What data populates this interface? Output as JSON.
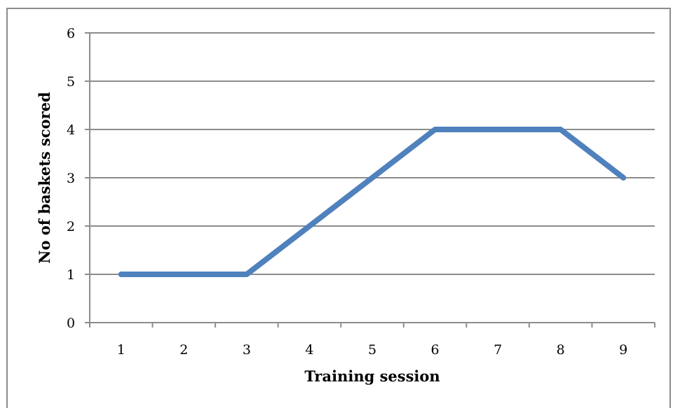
{
  "chart_data": {
    "type": "line",
    "title": "",
    "xlabel": "Training session",
    "ylabel": "No of baskets scored",
    "categories": [
      "1",
      "2",
      "3",
      "4",
      "5",
      "6",
      "7",
      "8",
      "9"
    ],
    "series": [
      {
        "values": [
          1,
          1,
          1,
          2,
          3,
          4,
          4,
          4,
          3
        ],
        "color": "#4f81bd"
      }
    ],
    "ylim": [
      0,
      6
    ],
    "yticks": [
      "0",
      "1",
      "2",
      "3",
      "4",
      "5",
      "6"
    ],
    "grid": true,
    "gridlines": "horizontal",
    "legend": "none",
    "colors": {
      "line": "#4f81bd",
      "grid": "#8c8c8c",
      "axis": "#8c8c8c",
      "frame": "#8c8c8c"
    }
  }
}
